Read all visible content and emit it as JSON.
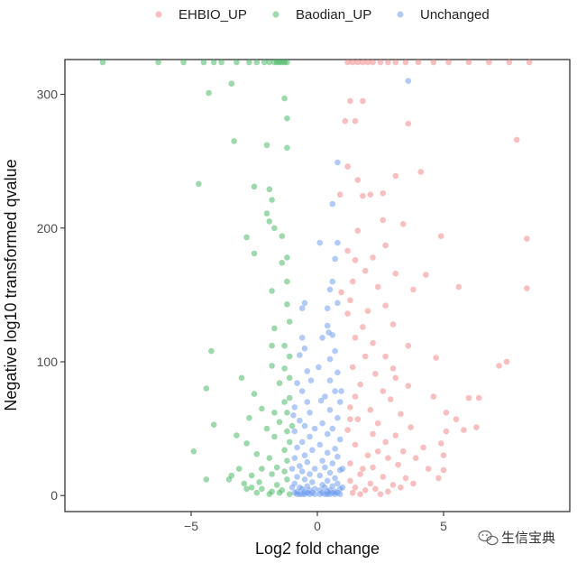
{
  "chart_data": {
    "type": "scatter",
    "title": "",
    "xlabel": "Log2 fold change",
    "ylabel": "Negative log10 transformed qvalue",
    "xlim": [
      -10,
      10
    ],
    "ylim": [
      -12,
      326
    ],
    "xticks": [
      -5,
      0,
      5
    ],
    "yticks": [
      0,
      100,
      200,
      300
    ],
    "grid": false,
    "legend_position": "top",
    "series": [
      {
        "name": "EHBIO_UP",
        "color": "#f08080",
        "points": [
          [
            1.3,
            295
          ],
          [
            1.8,
            295
          ],
          [
            3.6,
            278
          ],
          [
            1.5,
            280
          ],
          [
            7.9,
            266
          ],
          [
            1.2,
            246
          ],
          [
            2.6,
            226
          ],
          [
            1.8,
            224
          ],
          [
            2.1,
            225
          ],
          [
            3.1,
            239
          ],
          [
            4.1,
            242
          ],
          [
            2.6,
            206
          ],
          [
            3.4,
            203
          ],
          [
            1.6,
            198
          ],
          [
            2.7,
            187
          ],
          [
            1.2,
            183
          ],
          [
            4.9,
            194
          ],
          [
            8.3,
            192
          ],
          [
            1.5,
            176
          ],
          [
            2.2,
            178
          ],
          [
            1.9,
            168
          ],
          [
            3.1,
            166
          ],
          [
            4.3,
            165
          ],
          [
            1.4,
            160
          ],
          [
            2.4,
            156
          ],
          [
            3.8,
            154
          ],
          [
            5.6,
            156
          ],
          [
            8.3,
            155
          ],
          [
            1.3,
            146
          ],
          [
            2.0,
            138
          ],
          [
            2.7,
            142
          ],
          [
            1.8,
            126
          ],
          [
            3.0,
            128
          ],
          [
            1.5,
            118
          ],
          [
            2.2,
            114
          ],
          [
            3.6,
            112
          ],
          [
            1.9,
            104
          ],
          [
            2.7,
            104
          ],
          [
            4.7,
            103
          ],
          [
            7.5,
            100
          ],
          [
            7.2,
            97
          ],
          [
            1.4,
            96
          ],
          [
            2.3,
            91
          ],
          [
            3.1,
            88
          ],
          [
            1.7,
            83
          ],
          [
            2.6,
            78
          ],
          [
            3.6,
            82
          ],
          [
            1.5,
            74
          ],
          [
            2.9,
            72
          ],
          [
            4.6,
            74
          ],
          [
            6.0,
            73
          ],
          [
            6.4,
            73
          ],
          [
            1.3,
            66
          ],
          [
            2.1,
            64
          ],
          [
            3.3,
            61
          ],
          [
            5.1,
            62
          ],
          [
            5.5,
            57
          ],
          [
            1.6,
            57
          ],
          [
            2.4,
            54
          ],
          [
            3.7,
            51
          ],
          [
            6.3,
            51
          ],
          [
            5.8,
            49
          ],
          [
            1.2,
            49
          ],
          [
            2.2,
            46
          ],
          [
            3.1,
            45
          ],
          [
            5.1,
            48
          ],
          [
            2.7,
            40
          ],
          [
            1.5,
            38
          ],
          [
            3.4,
            33
          ],
          [
            4.2,
            36
          ],
          [
            4.9,
            39
          ],
          [
            2.0,
            30
          ],
          [
            2.8,
            28
          ],
          [
            3.9,
            28
          ],
          [
            5.0,
            30
          ],
          [
            1.3,
            24
          ],
          [
            2.2,
            21
          ],
          [
            3.2,
            23
          ],
          [
            4.4,
            20
          ],
          [
            5.0,
            19
          ],
          [
            1.7,
            16
          ],
          [
            2.6,
            14
          ],
          [
            3.5,
            13
          ],
          [
            4.8,
            13
          ],
          [
            1.3,
            11
          ],
          [
            2.1,
            9
          ],
          [
            3.0,
            8
          ],
          [
            3.8,
            9
          ],
          [
            1.5,
            6
          ],
          [
            2.3,
            5
          ],
          [
            1.9,
            4
          ],
          [
            2.8,
            3
          ],
          [
            3.3,
            6
          ],
          [
            1.4,
            2
          ],
          [
            1.7,
            1
          ],
          [
            2.5,
            1
          ],
          [
            1.8,
            20
          ],
          [
            2.4,
            33
          ],
          [
            1.3,
            57
          ],
          [
            3.0,
            95
          ],
          [
            1.2,
            136
          ],
          [
            0.9,
            225
          ],
          [
            1.1,
            280
          ],
          [
            0.95,
            152
          ],
          [
            1.6,
            236
          ]
        ]
      },
      {
        "name": "Baodian_UP",
        "color": "#3cb45a",
        "points": [
          [
            -4.3,
            301
          ],
          [
            -3.4,
            308
          ],
          [
            -1.3,
            297
          ],
          [
            -3.3,
            265
          ],
          [
            -1.2,
            282
          ],
          [
            -2.0,
            262
          ],
          [
            -1.2,
            260
          ],
          [
            -4.7,
            233
          ],
          [
            -2.5,
            231
          ],
          [
            -1.9,
            229
          ],
          [
            -1.8,
            221
          ],
          [
            -2.0,
            211
          ],
          [
            -1.9,
            205
          ],
          [
            -2.8,
            193
          ],
          [
            -1.7,
            200
          ],
          [
            -1.4,
            194
          ],
          [
            -2.5,
            181
          ],
          [
            -1.2,
            178
          ],
          [
            -1.4,
            174
          ],
          [
            -1.8,
            153
          ],
          [
            -1.2,
            160
          ],
          [
            -1.2,
            143
          ],
          [
            -1.7,
            125
          ],
          [
            -1.1,
            130
          ],
          [
            -1.8,
            112
          ],
          [
            -1.3,
            112
          ],
          [
            -4.2,
            108
          ],
          [
            -3.0,
            88
          ],
          [
            -1.8,
            97
          ],
          [
            -1.1,
            104
          ],
          [
            -4.4,
            80
          ],
          [
            -1.3,
            95
          ],
          [
            -2.5,
            76
          ],
          [
            -1.5,
            84
          ],
          [
            -1.1,
            73
          ],
          [
            -4.1,
            53
          ],
          [
            -2.7,
            58
          ],
          [
            -1.2,
            62
          ],
          [
            -2.2,
            65
          ],
          [
            -3.2,
            45
          ],
          [
            -2.0,
            50
          ],
          [
            -1.5,
            55
          ],
          [
            -4.9,
            33
          ],
          [
            -2.8,
            39
          ],
          [
            -1.7,
            44
          ],
          [
            -1.2,
            48
          ],
          [
            -2.4,
            31
          ],
          [
            -1.9,
            28
          ],
          [
            -1.3,
            34
          ],
          [
            -4.4,
            12
          ],
          [
            -3.5,
            12
          ],
          [
            -2.2,
            20
          ],
          [
            -1.6,
            21
          ],
          [
            -1.2,
            26
          ],
          [
            -3.4,
            15
          ],
          [
            -2.6,
            15
          ],
          [
            -1.8,
            16
          ],
          [
            -1.3,
            18
          ],
          [
            -2.9,
            9
          ],
          [
            -2.3,
            10
          ],
          [
            -1.6,
            8
          ],
          [
            -1.2,
            12
          ],
          [
            -2.8,
            5
          ],
          [
            -2.2,
            5
          ],
          [
            -1.8,
            3
          ],
          [
            -1.4,
            4
          ],
          [
            -2.4,
            2
          ],
          [
            -1.5,
            2
          ],
          [
            -1.1,
            1
          ],
          [
            -1.9,
            1
          ],
          [
            -1.1,
            40
          ],
          [
            -1.1,
            88
          ],
          [
            -1.3,
            70
          ],
          [
            -3.1,
            20
          ],
          [
            -2.6,
            6
          ],
          [
            -1.7,
            62
          ],
          [
            -1.0,
            52
          ]
        ]
      },
      {
        "name": "Unchanged",
        "color": "#6495ed",
        "points": [
          [
            3.6,
            310
          ],
          [
            0.8,
            249
          ],
          [
            0.6,
            218
          ],
          [
            0.8,
            189
          ],
          [
            0.7,
            177
          ],
          [
            0.1,
            189
          ],
          [
            0.6,
            160
          ],
          [
            0.5,
            154
          ],
          [
            0.8,
            144
          ],
          [
            -0.5,
            144
          ],
          [
            0.4,
            140
          ],
          [
            -0.6,
            140
          ],
          [
            0.6,
            120
          ],
          [
            -0.6,
            118
          ],
          [
            0.4,
            127
          ],
          [
            -0.5,
            110
          ],
          [
            0.7,
            108
          ],
          [
            0.5,
            102
          ],
          [
            -0.7,
            105
          ],
          [
            0.8,
            92
          ],
          [
            -0.4,
            93
          ],
          [
            0.5,
            86
          ],
          [
            -0.8,
            84
          ],
          [
            0.7,
            78
          ],
          [
            -0.6,
            78
          ],
          [
            0.3,
            74
          ],
          [
            -0.4,
            70
          ],
          [
            0.9,
            70
          ],
          [
            -0.9,
            66
          ],
          [
            0.5,
            64
          ],
          [
            -0.3,
            62
          ],
          [
            0.8,
            58
          ],
          [
            -0.7,
            56
          ],
          [
            0.2,
            54
          ],
          [
            -0.5,
            52
          ],
          [
            0.6,
            50
          ],
          [
            -0.9,
            48
          ],
          [
            0.4,
            46
          ],
          [
            -0.3,
            44
          ],
          [
            0.9,
            42
          ],
          [
            -0.6,
            40
          ],
          [
            0.1,
            38
          ],
          [
            -0.8,
            36
          ],
          [
            0.7,
            35
          ],
          [
            -0.2,
            34
          ],
          [
            0.4,
            32
          ],
          [
            -0.5,
            30
          ],
          [
            0.8,
            29
          ],
          [
            -0.9,
            28
          ],
          [
            0.2,
            26
          ],
          [
            -0.4,
            25
          ],
          [
            0.6,
            24
          ],
          [
            -0.7,
            22
          ],
          [
            0.3,
            21
          ],
          [
            -0.1,
            20
          ],
          [
            0.9,
            19
          ],
          [
            -0.6,
            18
          ],
          [
            0.5,
            17
          ],
          [
            -0.3,
            16
          ],
          [
            0.1,
            15
          ],
          [
            -0.8,
            14
          ],
          [
            0.7,
            13
          ],
          [
            -0.5,
            12
          ],
          [
            0.4,
            11
          ],
          [
            -0.2,
            10
          ],
          [
            0.8,
            9
          ],
          [
            -0.9,
            9
          ],
          [
            0.2,
            8
          ],
          [
            -0.4,
            7
          ],
          [
            0.6,
            7
          ],
          [
            -0.7,
            6
          ],
          [
            0.3,
            6
          ],
          [
            -0.1,
            5
          ],
          [
            0.9,
            5
          ],
          [
            -0.6,
            5
          ],
          [
            0.5,
            4
          ],
          [
            -0.3,
            4
          ],
          [
            0.1,
            4
          ],
          [
            -0.8,
            3
          ],
          [
            0.7,
            3
          ],
          [
            -0.5,
            3
          ],
          [
            0.4,
            3
          ],
          [
            -0.2,
            2
          ],
          [
            0.8,
            2
          ],
          [
            -0.9,
            2
          ],
          [
            0.2,
            2
          ],
          [
            -0.4,
            2
          ],
          [
            0.6,
            2
          ],
          [
            -0.7,
            1
          ],
          [
            0.3,
            1
          ],
          [
            -0.1,
            1
          ],
          [
            0.9,
            1
          ],
          [
            -0.6,
            1
          ],
          [
            0.5,
            1
          ],
          [
            -0.3,
            1
          ],
          [
            0.1,
            1
          ],
          [
            -0.8,
            1
          ],
          [
            0.7,
            1
          ],
          [
            -0.5,
            1
          ],
          [
            0.4,
            1
          ],
          [
            -1.0,
            6
          ],
          [
            1.0,
            6
          ],
          [
            -1.0,
            20
          ],
          [
            1.0,
            20
          ],
          [
            0.95,
            78
          ],
          [
            -0.95,
            60
          ],
          [
            0.2,
            118
          ],
          [
            -0.25,
            86
          ],
          [
            0.05,
            96
          ],
          [
            0.15,
            71
          ],
          [
            -0.1,
            50
          ],
          [
            0.45,
            122
          ]
        ]
      }
    ],
    "capped_points": {
      "y": 324,
      "series": [
        "Baodian_UP",
        "EHBIO_UP"
      ],
      "x": [
        [
          -8.5,
          -6.3,
          -5.3,
          -4.5,
          -4.1,
          -3.8,
          -3.2,
          -2.7,
          -2.4,
          -2.1,
          -1.9,
          -1.7,
          -1.6,
          -1.5,
          -1.4,
          -1.3,
          -1.2
        ],
        [
          1.2,
          1.4,
          1.6,
          1.8,
          2.0,
          2.2,
          2.5,
          2.8,
          3.1,
          3.5,
          4.0,
          4.6,
          5.2,
          6.0,
          6.8,
          7.6,
          8.4
        ]
      ]
    }
  },
  "watermark": {
    "text": "生信宝典",
    "icon": "wechat-icon"
  }
}
